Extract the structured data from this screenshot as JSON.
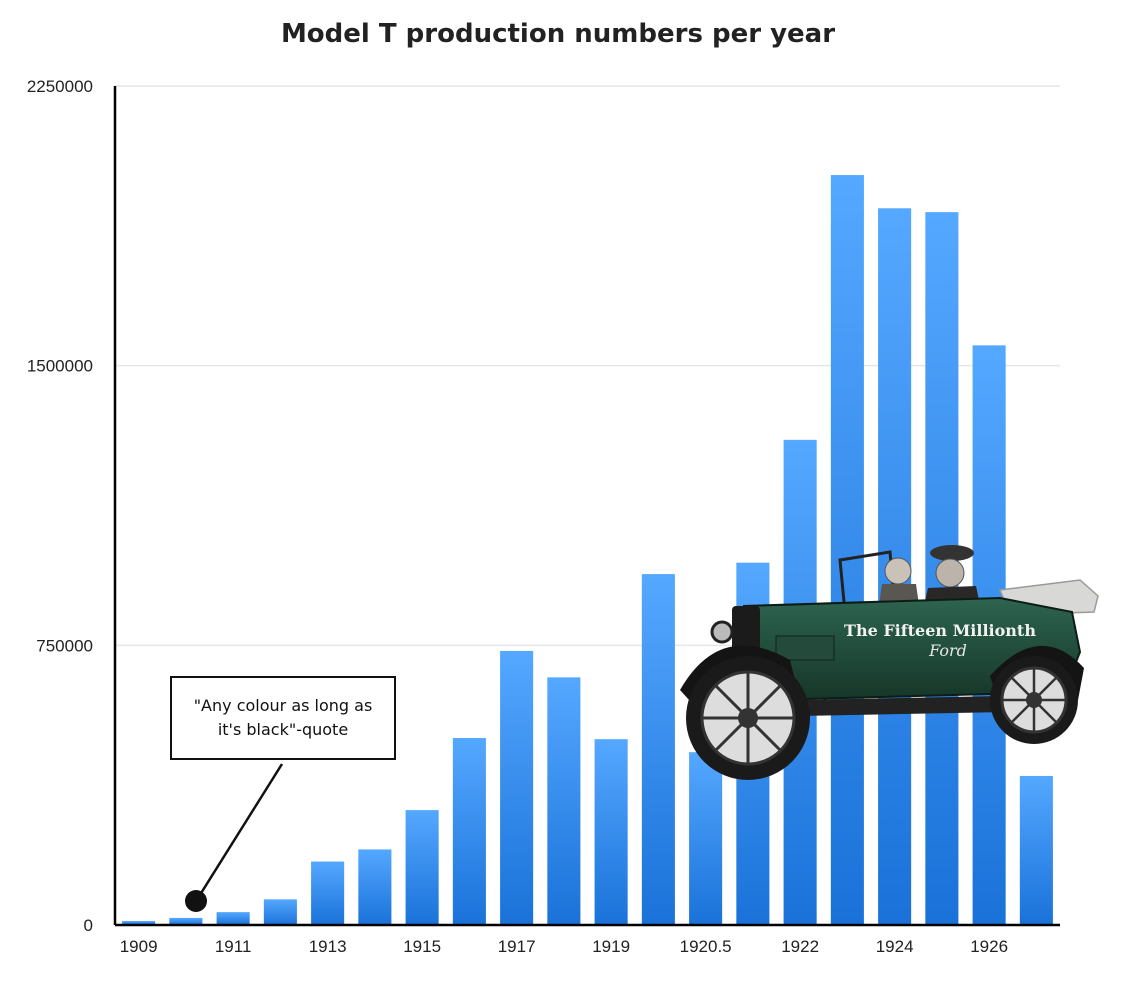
{
  "chart_data": {
    "type": "bar",
    "title": "Model T production numbers per year",
    "xlabel": "",
    "ylabel": "",
    "categories": [
      "1909",
      "1910",
      "1911",
      "1912",
      "1913",
      "1914",
      "1915",
      "1916",
      "1917",
      "1918",
      "1919",
      "1920",
      "1920.5",
      "1921",
      "1922",
      "1923",
      "1924",
      "1925",
      "1926",
      "1927"
    ],
    "tick_labels": [
      "1909",
      "1911",
      "1913",
      "1915",
      "1917",
      "1919",
      "1920.5",
      "1922",
      "1924",
      "1926"
    ],
    "values": [
      10666,
      19050,
      34528,
      68773,
      170211,
      202667,
      308162,
      501462,
      735020,
      664076,
      498342,
      941042,
      463451,
      971610,
      1301067,
      2011125,
      1922048,
      1911705,
      1554465,
      399725
    ],
    "ylim": [
      0,
      2250000
    ],
    "yticks": [
      0,
      750000,
      1500000,
      2250000
    ],
    "ytick_labels": [
      "0",
      "750000",
      "1500000",
      "2250000"
    ],
    "grid": true,
    "legend": "none",
    "bar_color_top": "#55a8ff",
    "bar_color_bottom": "#1a72d9"
  },
  "annotation": {
    "text": "\"Any colour as long as it's black\"-quote",
    "target_category": "1910"
  },
  "photo_caption": {
    "line1": "The Fifteen Millionth",
    "line2": "Ford"
  },
  "colors": {
    "car_body": "#1f4a3a",
    "axis": "#000000",
    "grid": "#e6e6e6"
  }
}
